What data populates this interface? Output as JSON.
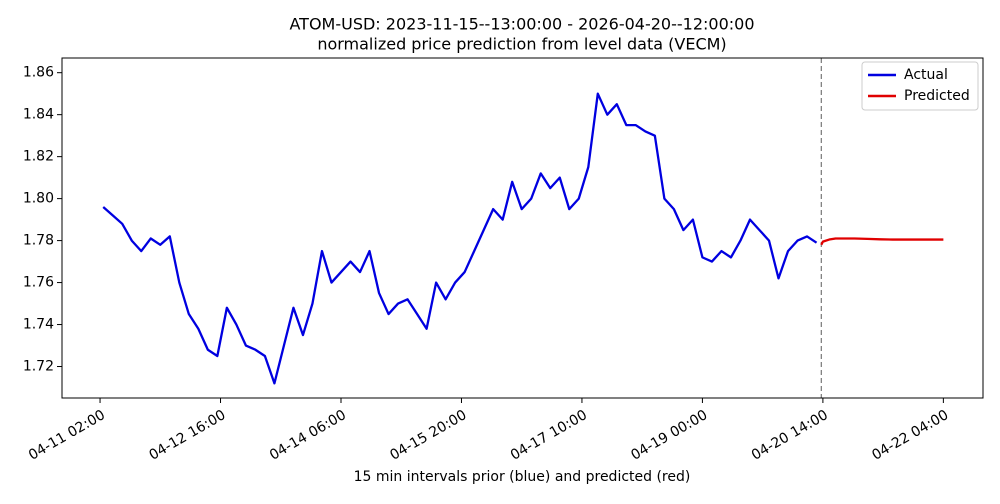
{
  "chart_data": {
    "type": "line",
    "title": "ATOM-USD: 2023-11-15--13:00:00 - 2026-04-20--12:00:00",
    "subtitle": "normalized price prediction from level data (VECM)",
    "x_label": "15 min intervals prior (blue) and predicted (red)",
    "xlim": [
      "04-10 14:00",
      "04-22 16:30"
    ],
    "xticks": [
      "04-11 02:00",
      "04-12 16:00",
      "04-14 06:00",
      "04-15 20:00",
      "04-17 10:00",
      "04-19 00:00",
      "04-20 14:00",
      "04-22 04:00"
    ],
    "ylim": [
      1.705,
      1.867
    ],
    "yticks": [
      1.72,
      1.74,
      1.76,
      1.78,
      {
        "value": 1.8,
        "label": "1.80"
      },
      1.82,
      1.84,
      1.86
    ],
    "forecast_start": "04-20 13:30",
    "legend": "upper right",
    "grid": false,
    "series": [
      {
        "name": "Actual",
        "color": "#0000e0",
        "x": [
          "04-11 03:00",
          "04-11 06:00",
          "04-11 09:00",
          "04-11 12:00",
          "04-11 15:00",
          "04-11 18:00",
          "04-11 21:00",
          "04-12 00:00",
          "04-12 03:00",
          "04-12 06:00",
          "04-12 09:00",
          "04-12 12:00",
          "04-12 15:00",
          "04-12 18:00",
          "04-12 21:00",
          "04-13 00:00",
          "04-13 03:00",
          "04-13 06:00",
          "04-13 09:00",
          "04-13 12:00",
          "04-13 15:00",
          "04-13 18:00",
          "04-13 21:00",
          "04-14 00:00",
          "04-14 03:00",
          "04-14 06:00",
          "04-14 09:00",
          "04-14 12:00",
          "04-14 15:00",
          "04-14 18:00",
          "04-14 21:00",
          "04-15 00:00",
          "04-15 03:00",
          "04-15 06:00",
          "04-15 09:00",
          "04-15 12:00",
          "04-15 15:00",
          "04-15 18:00",
          "04-15 21:00",
          "04-16 00:00",
          "04-16 03:00",
          "04-16 06:00",
          "04-16 09:00",
          "04-16 12:00",
          "04-16 15:00",
          "04-16 18:00",
          "04-16 21:00",
          "04-17 00:00",
          "04-17 03:00",
          "04-17 06:00",
          "04-17 09:00",
          "04-17 12:00",
          "04-17 15:00",
          "04-17 18:00",
          "04-17 21:00",
          "04-18 00:00",
          "04-18 03:00",
          "04-18 06:00",
          "04-18 09:00",
          "04-18 12:00",
          "04-18 15:00",
          "04-18 18:00",
          "04-18 21:00",
          "04-19 00:00",
          "04-19 03:00",
          "04-19 06:00",
          "04-19 09:00",
          "04-19 12:00",
          "04-19 15:00",
          "04-19 18:00",
          "04-19 21:00",
          "04-20 00:00",
          "04-20 03:00",
          "04-20 06:00",
          "04-20 09:00",
          "04-20 12:00"
        ],
        "values": [
          1.796,
          1.792,
          1.788,
          1.78,
          1.775,
          1.781,
          1.778,
          1.782,
          1.76,
          1.745,
          1.738,
          1.728,
          1.725,
          1.748,
          1.74,
          1.73,
          1.728,
          1.725,
          1.712,
          1.73,
          1.748,
          1.735,
          1.75,
          1.775,
          1.76,
          1.765,
          1.77,
          1.765,
          1.775,
          1.755,
          1.745,
          1.75,
          1.752,
          1.745,
          1.738,
          1.76,
          1.752,
          1.76,
          1.765,
          1.775,
          1.785,
          1.795,
          1.79,
          1.808,
          1.795,
          1.8,
          1.812,
          1.805,
          1.81,
          1.795,
          1.8,
          1.815,
          1.85,
          1.84,
          1.845,
          1.835,
          1.835,
          1.832,
          1.83,
          1.8,
          1.795,
          1.785,
          1.79,
          1.772,
          1.77,
          1.775,
          1.772,
          1.78,
          1.79,
          1.785,
          1.78,
          1.762,
          1.775,
          1.78,
          1.782,
          1.779
        ]
      },
      {
        "name": "Predicted",
        "color": "#e00000",
        "x": [
          "04-20 13:30",
          "04-20 14:00",
          "04-20 16:00",
          "04-20 18:00",
          "04-20 20:00",
          "04-20 22:00",
          "04-21 00:00",
          "04-21 04:00",
          "04-21 08:00",
          "04-21 12:00",
          "04-21 16:00",
          "04-21 20:00",
          "04-22 00:00",
          "04-22 04:00"
        ],
        "values": [
          1.778,
          1.7795,
          1.7805,
          1.781,
          1.781,
          1.781,
          1.781,
          1.7808,
          1.7806,
          1.7805,
          1.7805,
          1.7805,
          1.7805,
          1.7805
        ]
      }
    ]
  }
}
